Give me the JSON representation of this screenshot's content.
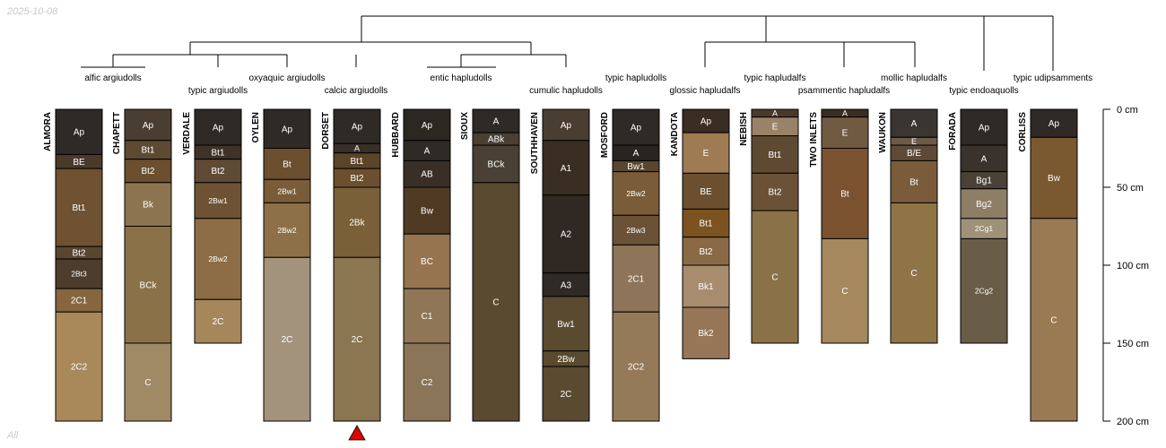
{
  "meta": {
    "date": "2025-10-08",
    "footer": "All"
  },
  "chart_data": {
    "type": "soil-profile-sketch",
    "depth_axis": {
      "unit": "cm",
      "max": 200,
      "ticks": [
        0,
        50,
        100,
        150,
        200
      ],
      "tick_labels": [
        "0 cm",
        "50 cm",
        "100 cm",
        "150 cm",
        "200 cm"
      ]
    },
    "groups": [
      "alfic argiudolls",
      "typic argiudolls",
      "oxyaquic argiudolls",
      "calcic argiudolls",
      "entic hapludolls",
      "cumulic hapludolls",
      "typic hapludolls",
      "glossic hapludalfs",
      "typic hapludalfs",
      "psammentic hapludalfs",
      "mollic hapludalfs",
      "typic endoaquolls",
      "typic udipsamments"
    ],
    "profiles": [
      {
        "name": "ALMORA",
        "marker": false,
        "horizons": [
          {
            "name": "Ap",
            "top": 0,
            "bottom": 29,
            "color": "#2f2a25"
          },
          {
            "name": "BE",
            "top": 29,
            "bottom": 38,
            "color": "#4a3a2a"
          },
          {
            "name": "Bt1",
            "top": 38,
            "bottom": 88,
            "color": "#6e5232"
          },
          {
            "name": "Bt2",
            "top": 88,
            "bottom": 96,
            "color": "#5a4530"
          },
          {
            "name": "2Bt3",
            "top": 96,
            "bottom": 115,
            "color": "#4c3d2c"
          },
          {
            "name": "2C1",
            "top": 115,
            "bottom": 130,
            "color": "#86663e"
          },
          {
            "name": "2C2",
            "top": 130,
            "bottom": 200,
            "color": "#a9885a"
          }
        ]
      },
      {
        "name": "CHAPETT",
        "marker": false,
        "horizons": [
          {
            "name": "Ap",
            "top": 0,
            "bottom": 20,
            "color": "#4a3d31"
          },
          {
            "name": "Bt1",
            "top": 20,
            "bottom": 32,
            "color": "#5e4a33"
          },
          {
            "name": "Bt2",
            "top": 32,
            "bottom": 47,
            "color": "#6b4f2e"
          },
          {
            "name": "Bk",
            "top": 47,
            "bottom": 75,
            "color": "#8d7450"
          },
          {
            "name": "BCk",
            "top": 75,
            "bottom": 150,
            "color": "#8a7148"
          },
          {
            "name": "C",
            "top": 150,
            "bottom": 200,
            "color": "#a08a66"
          }
        ]
      },
      {
        "name": "VERDALE",
        "marker": false,
        "horizons": [
          {
            "name": "Ap",
            "top": 0,
            "bottom": 23,
            "color": "#2f2a25"
          },
          {
            "name": "Bt1",
            "top": 23,
            "bottom": 32,
            "color": "#3f3226"
          },
          {
            "name": "Bt2",
            "top": 32,
            "bottom": 47,
            "color": "#5e4a35"
          },
          {
            "name": "2Bw1",
            "top": 47,
            "bottom": 70,
            "color": "#6d5334"
          },
          {
            "name": "2Bw2",
            "top": 70,
            "bottom": 122,
            "color": "#8c6d45"
          },
          {
            "name": "2C",
            "top": 122,
            "bottom": 150,
            "color": "#a6875b"
          }
        ]
      },
      {
        "name": "OYLEN",
        "marker": false,
        "horizons": [
          {
            "name": "Ap",
            "top": 0,
            "bottom": 25,
            "color": "#2f2a25"
          },
          {
            "name": "Bt",
            "top": 25,
            "bottom": 45,
            "color": "#6b4f2e"
          },
          {
            "name": "2Bw1",
            "top": 45,
            "bottom": 60,
            "color": "#7a5c38"
          },
          {
            "name": "2Bw2",
            "top": 60,
            "bottom": 95,
            "color": "#8e7048"
          },
          {
            "name": "2C",
            "top": 95,
            "bottom": 200,
            "color": "#a3937d"
          }
        ]
      },
      {
        "name": "DORSET",
        "marker": true,
        "horizons": [
          {
            "name": "Ap",
            "top": 0,
            "bottom": 22,
            "color": "#2f2a25"
          },
          {
            "name": "A",
            "top": 22,
            "bottom": 28,
            "color": "#3a2f26"
          },
          {
            "name": "Bt1",
            "top": 28,
            "bottom": 38,
            "color": "#5a4528"
          },
          {
            "name": "Bt2",
            "top": 38,
            "bottom": 50,
            "color": "#6b4f2e"
          },
          {
            "name": "2Bk",
            "top": 50,
            "bottom": 95,
            "color": "#7a6038"
          },
          {
            "name": "2C",
            "top": 95,
            "bottom": 200,
            "color": "#8a7650"
          }
        ]
      },
      {
        "name": "HUBBARD",
        "marker": false,
        "horizons": [
          {
            "name": "Ap",
            "top": 0,
            "bottom": 20,
            "color": "#2d2722"
          },
          {
            "name": "A",
            "top": 20,
            "bottom": 33,
            "color": "#2f2a25"
          },
          {
            "name": "AB",
            "top": 33,
            "bottom": 50,
            "color": "#3a2f26"
          },
          {
            "name": "Bw",
            "top": 50,
            "bottom": 80,
            "color": "#4f3b24"
          },
          {
            "name": "BC",
            "top": 80,
            "bottom": 115,
            "color": "#967450"
          },
          {
            "name": "C1",
            "top": 115,
            "bottom": 150,
            "color": "#8f7656"
          },
          {
            "name": "C2",
            "top": 150,
            "bottom": 200,
            "color": "#8a7558"
          }
        ]
      },
      {
        "name": "SIOUX",
        "marker": false,
        "horizons": [
          {
            "name": "A",
            "top": 0,
            "bottom": 15,
            "color": "#2f2a25"
          },
          {
            "name": "ABk",
            "top": 15,
            "bottom": 23,
            "color": "#4a3f33"
          },
          {
            "name": "BCk",
            "top": 23,
            "bottom": 47,
            "color": "#4a4035"
          },
          {
            "name": "C",
            "top": 47,
            "bottom": 200,
            "color": "#5a4a30"
          }
        ]
      },
      {
        "name": "SOUTHHAVEN",
        "marker": false,
        "horizons": [
          {
            "name": "Ap",
            "top": 0,
            "bottom": 20,
            "color": "#4a3d31"
          },
          {
            "name": "A1",
            "top": 20,
            "bottom": 55,
            "color": "#3a2e22"
          },
          {
            "name": "A2",
            "top": 55,
            "bottom": 105,
            "color": "#302822"
          },
          {
            "name": "A3",
            "top": 105,
            "bottom": 120,
            "color": "#2f2a25"
          },
          {
            "name": "Bw1",
            "top": 120,
            "bottom": 155,
            "color": "#5a4a30"
          },
          {
            "name": "2Bw",
            "top": 155,
            "bottom": 165,
            "color": "#5a4a30"
          },
          {
            "name": "2C",
            "top": 165,
            "bottom": 200,
            "color": "#5a4a30"
          }
        ]
      },
      {
        "name": "MOSFORD",
        "marker": false,
        "horizons": [
          {
            "name": "Ap",
            "top": 0,
            "bottom": 23,
            "color": "#2f2a25"
          },
          {
            "name": "A",
            "top": 23,
            "bottom": 33,
            "color": "#2a2420"
          },
          {
            "name": "Bw1",
            "top": 33,
            "bottom": 40,
            "color": "#5a4530"
          },
          {
            "name": "2Bw2",
            "top": 40,
            "bottom": 68,
            "color": "#7a5c38"
          },
          {
            "name": "2Bw3",
            "top": 68,
            "bottom": 87,
            "color": "#6b5236"
          },
          {
            "name": "2C1",
            "top": 87,
            "bottom": 130,
            "color": "#8e7458"
          },
          {
            "name": "2C2",
            "top": 130,
            "bottom": 200,
            "color": "#957a5a"
          }
        ]
      },
      {
        "name": "KANDOTA",
        "marker": false,
        "horizons": [
          {
            "name": "Ap",
            "top": 0,
            "bottom": 15,
            "color": "#3a2d22"
          },
          {
            "name": "E",
            "top": 15,
            "bottom": 41,
            "color": "#9e7b52"
          },
          {
            "name": "BE",
            "top": 41,
            "bottom": 64,
            "color": "#6b4f2e"
          },
          {
            "name": "Bt1",
            "top": 64,
            "bottom": 82,
            "color": "#7a5320"
          },
          {
            "name": "Bt2",
            "top": 82,
            "bottom": 100,
            "color": "#8a6a46"
          },
          {
            "name": "Bk1",
            "top": 100,
            "bottom": 127,
            "color": "#a88c6e"
          },
          {
            "name": "Bk2",
            "top": 127,
            "bottom": 160,
            "color": "#967656"
          }
        ]
      },
      {
        "name": "NEBISH",
        "marker": false,
        "horizons": [
          {
            "name": "A",
            "top": 0,
            "bottom": 5,
            "color": "#4a3a2c"
          },
          {
            "name": "E",
            "top": 5,
            "bottom": 17,
            "color": "#9a8268"
          },
          {
            "name": "Bt1",
            "top": 17,
            "bottom": 41,
            "color": "#5e4a33"
          },
          {
            "name": "Bt2",
            "top": 41,
            "bottom": 65,
            "color": "#6b5236"
          },
          {
            "name": "C",
            "top": 65,
            "bottom": 150,
            "color": "#8a7148"
          }
        ]
      },
      {
        "name": "TWO INLETS",
        "marker": false,
        "horizons": [
          {
            "name": "A",
            "top": 0,
            "bottom": 5,
            "color": "#3a2d22"
          },
          {
            "name": "E",
            "top": 5,
            "bottom": 25,
            "color": "#705a42"
          },
          {
            "name": "Bt",
            "top": 25,
            "bottom": 83,
            "color": "#7a5230"
          },
          {
            "name": "C",
            "top": 83,
            "bottom": 150,
            "color": "#a6885e"
          }
        ]
      },
      {
        "name": "WAUKON",
        "marker": false,
        "horizons": [
          {
            "name": "A",
            "top": 0,
            "bottom": 18,
            "color": "#3a3530"
          },
          {
            "name": "E",
            "top": 18,
            "bottom": 23,
            "color": "#6e5a48"
          },
          {
            "name": "B/E",
            "top": 23,
            "bottom": 33,
            "color": "#5e4a38"
          },
          {
            "name": "Bt",
            "top": 33,
            "bottom": 60,
            "color": "#7a5c3a"
          },
          {
            "name": "C",
            "top": 60,
            "bottom": 150,
            "color": "#8e7446"
          }
        ]
      },
      {
        "name": "FORADA",
        "marker": false,
        "horizons": [
          {
            "name": "Ap",
            "top": 0,
            "bottom": 23,
            "color": "#2f2a25"
          },
          {
            "name": "A",
            "top": 23,
            "bottom": 40,
            "color": "#3a322b"
          },
          {
            "name": "Bg1",
            "top": 40,
            "bottom": 51,
            "color": "#4a4236"
          },
          {
            "name": "Bg2",
            "top": 51,
            "bottom": 70,
            "color": "#8e7e66"
          },
          {
            "name": "2Cg1",
            "top": 70,
            "bottom": 83,
            "color": "#a09278"
          },
          {
            "name": "2Cg2",
            "top": 83,
            "bottom": 150,
            "color": "#6a5d48"
          }
        ]
      },
      {
        "name": "CORLISS",
        "marker": false,
        "horizons": [
          {
            "name": "Ap",
            "top": 0,
            "bottom": 18,
            "color": "#2f2a25"
          },
          {
            "name": "Bw",
            "top": 18,
            "bottom": 70,
            "color": "#7a5830"
          },
          {
            "name": "C",
            "top": 70,
            "bottom": 200,
            "color": "#9a7a52"
          }
        ]
      }
    ]
  }
}
